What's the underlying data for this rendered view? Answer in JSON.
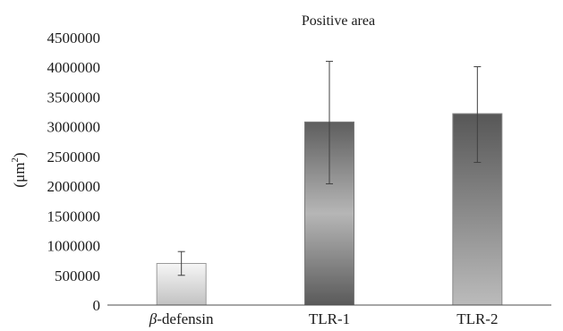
{
  "chart_data": {
    "type": "bar",
    "title": "Positive area",
    "xlabel": "",
    "ylabel": "(μm²)",
    "ylabel_main": "(μm",
    "ylabel_sup": "2",
    "ylabel_close": ")",
    "categories": [
      "β-defensin",
      "TLR-1",
      "TLR-2"
    ],
    "category_prefix": [
      "β",
      "",
      ""
    ],
    "category_rest": [
      "-defensin",
      "TLR-1",
      "TLR-2"
    ],
    "values": [
      700000,
      3080000,
      3220000
    ],
    "error": [
      {
        "low": 500000,
        "high": 900000
      },
      {
        "low": 2040000,
        "high": 4100000
      },
      {
        "low": 2400000,
        "high": 4010000
      }
    ],
    "ylim": [
      0,
      4500000
    ],
    "yticks": [
      0,
      500000,
      1000000,
      1500000,
      2000000,
      2500000,
      3000000,
      3500000,
      4000000,
      4500000
    ],
    "ytick_labels": [
      "0",
      "500000",
      "1000000",
      "1500000",
      "2000000",
      "2500000",
      "3000000",
      "3500000",
      "4000000",
      "4500000"
    ],
    "grid": false,
    "legend": "none",
    "colors": {
      "axis": "#4d4d4d",
      "bar_light": [
        "#bdbdbd",
        "#f5f5f5"
      ],
      "bar_dark_1": [
        "#5f5f5f",
        "#b4b4b4"
      ],
      "bar_dark_2": [
        "#5a5a5a",
        "#b8b8b8"
      ],
      "error_bar": "#404040"
    }
  }
}
